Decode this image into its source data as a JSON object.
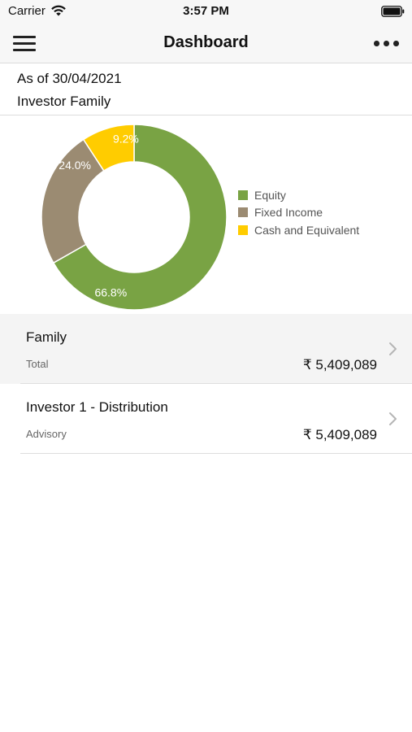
{
  "status_bar": {
    "carrier": "Carrier",
    "time": "3:57 PM",
    "icons": [
      "wifi-icon",
      "battery-icon"
    ]
  },
  "nav": {
    "title": "Dashboard",
    "left_icon": "hamburger-menu-icon",
    "right_icon": "more-dots-icon"
  },
  "info": {
    "as_of": "As of 30/04/2021",
    "group": "Investor Family"
  },
  "chart_data": {
    "type": "pie",
    "donut": true,
    "categories": [
      "Equity",
      "Fixed Income",
      "Cash and Equivalent"
    ],
    "values": [
      66.8,
      24.0,
      9.2
    ],
    "labels": [
      "66.8%",
      "24.0%",
      "9.2%"
    ],
    "colors": [
      "#79a344",
      "#9b8b72",
      "#ffcc00"
    ],
    "legend_position": "right"
  },
  "accounts": [
    {
      "name": "Family",
      "type": "Total",
      "amount": "₹ 5,409,089"
    },
    {
      "name": "Investor 1 - Distribution",
      "type": "Advisory",
      "amount": "₹ 5,409,089"
    }
  ]
}
